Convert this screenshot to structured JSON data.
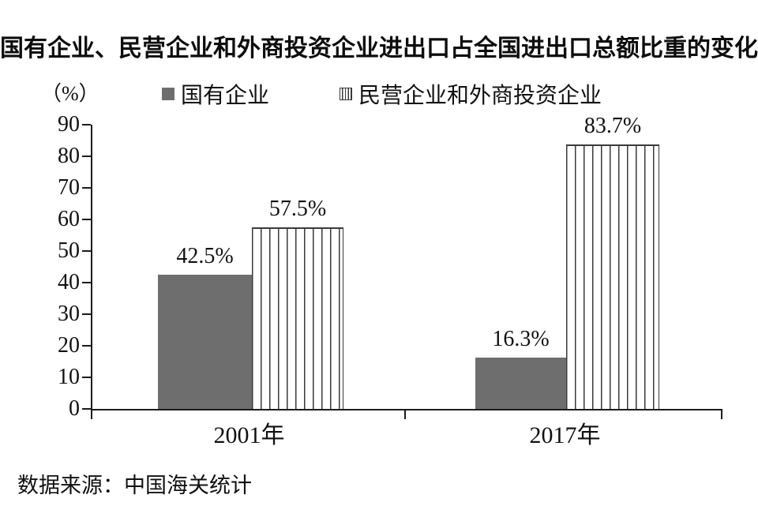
{
  "title": "国有企业、民营企业和外商投资企业进出口占全国进出口总额比重的变化",
  "y_axis_unit": "（%）",
  "source": "数据来源：中国海关统计",
  "colors": {
    "background": "#ffffff",
    "solid_bar": "#6e6e6e",
    "stripe_line": "#3a3a3a",
    "axis": "#1c1c1c",
    "text": "#111111"
  },
  "chart_data": {
    "type": "bar",
    "categories": [
      "2001年",
      "2017年"
    ],
    "series": [
      {
        "name": "国有企业",
        "values": [
          42.5,
          16.3
        ],
        "labels": [
          "42.5%",
          "16.3%"
        ],
        "style": "solid-gray"
      },
      {
        "name": "民营企业和外商投资企业",
        "values": [
          57.5,
          83.7
        ],
        "labels": [
          "57.5%",
          "83.7%"
        ],
        "style": "vertical-stripes"
      }
    ],
    "xlabel": "",
    "ylabel": "（%）",
    "ylim": [
      0,
      90
    ],
    "y_ticks": [
      0,
      10,
      20,
      30,
      40,
      50,
      60,
      70,
      80,
      90
    ],
    "grid": false,
    "legend_position": "top"
  }
}
